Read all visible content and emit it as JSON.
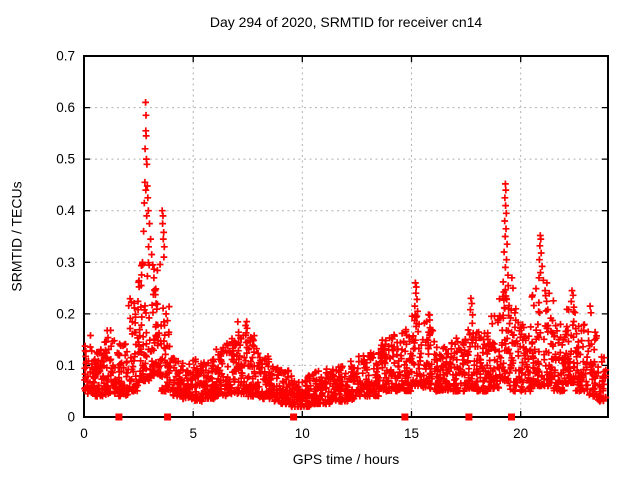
{
  "chart_data": {
    "type": "scatter",
    "title": "Day 294 of 2020, SRMTID for receiver cn14",
    "xlabel": "GPS time / hours",
    "ylabel": "SRMTID / TECUs",
    "xlim": [
      0,
      24
    ],
    "ylim": [
      0,
      0.7
    ],
    "xticks": [
      0,
      5,
      10,
      15,
      20
    ],
    "xtick_labels": [
      "0",
      "5",
      "10",
      "15",
      "20"
    ],
    "yticks": [
      0,
      0.1,
      0.2,
      0.3,
      0.4,
      0.5,
      0.6,
      0.7
    ],
    "ytick_labels": [
      "0",
      "0.1",
      "0.2",
      "0.3",
      "0.4",
      "0.5",
      "0.6",
      "0.7"
    ],
    "grid": {
      "show": true,
      "color": "#b0b0b0",
      "style": "dashed"
    },
    "legend": "none",
    "seed": 294,
    "series": [
      {
        "name": "SRMTID",
        "marker": "plus",
        "color": "#ff0000",
        "marker_size": 7,
        "density_bins": [
          [
            0.0,
            0.5,
            50,
            0.045,
            0.155,
            1.6
          ],
          [
            0.5,
            1.0,
            50,
            0.04,
            0.135,
            1.6
          ],
          [
            1.0,
            1.5,
            50,
            0.045,
            0.17,
            1.8
          ],
          [
            1.5,
            2.0,
            50,
            0.04,
            0.145,
            1.7
          ],
          [
            2.0,
            2.5,
            50,
            0.05,
            0.23,
            2.0
          ],
          [
            2.5,
            3.0,
            55,
            0.07,
            0.3,
            2.0
          ],
          [
            3.0,
            3.5,
            55,
            0.08,
            0.3,
            2.0
          ],
          [
            3.5,
            4.0,
            50,
            0.05,
            0.22,
            1.9
          ],
          [
            4.0,
            4.5,
            50,
            0.04,
            0.115,
            1.6
          ],
          [
            4.5,
            5.0,
            50,
            0.035,
            0.11,
            1.6
          ],
          [
            5.0,
            5.5,
            50,
            0.03,
            0.115,
            1.6
          ],
          [
            5.5,
            6.0,
            50,
            0.035,
            0.12,
            1.6
          ],
          [
            6.0,
            6.5,
            50,
            0.04,
            0.14,
            1.7
          ],
          [
            6.5,
            7.0,
            50,
            0.045,
            0.155,
            1.7
          ],
          [
            7.0,
            7.5,
            50,
            0.045,
            0.185,
            1.9
          ],
          [
            7.5,
            8.0,
            50,
            0.04,
            0.16,
            1.8
          ],
          [
            8.0,
            8.5,
            45,
            0.035,
            0.12,
            1.6
          ],
          [
            8.5,
            9.0,
            45,
            0.03,
            0.1,
            1.6
          ],
          [
            9.0,
            9.5,
            45,
            0.025,
            0.095,
            1.6
          ],
          [
            9.5,
            10.0,
            45,
            0.02,
            0.085,
            1.5
          ],
          [
            10.0,
            10.5,
            45,
            0.02,
            0.09,
            1.5
          ],
          [
            10.5,
            11.0,
            45,
            0.025,
            0.09,
            1.5
          ],
          [
            11.0,
            11.5,
            45,
            0.025,
            0.095,
            1.5
          ],
          [
            11.5,
            12.0,
            45,
            0.03,
            0.1,
            1.5
          ],
          [
            12.0,
            12.5,
            45,
            0.03,
            0.11,
            1.5
          ],
          [
            12.5,
            13.0,
            45,
            0.04,
            0.12,
            1.6
          ],
          [
            13.0,
            13.5,
            45,
            0.04,
            0.13,
            1.6
          ],
          [
            13.5,
            14.0,
            50,
            0.05,
            0.15,
            1.7
          ],
          [
            14.0,
            14.5,
            50,
            0.05,
            0.16,
            1.7
          ],
          [
            14.5,
            15.0,
            50,
            0.05,
            0.17,
            1.8
          ],
          [
            15.0,
            15.5,
            50,
            0.06,
            0.2,
            1.8
          ],
          [
            15.5,
            16.0,
            50,
            0.055,
            0.2,
            1.9
          ],
          [
            16.0,
            16.5,
            50,
            0.05,
            0.15,
            1.7
          ],
          [
            16.5,
            17.0,
            50,
            0.05,
            0.145,
            1.7
          ],
          [
            17.0,
            17.5,
            50,
            0.05,
            0.16,
            1.7
          ],
          [
            17.5,
            18.0,
            50,
            0.055,
            0.19,
            1.9
          ],
          [
            18.0,
            18.5,
            50,
            0.05,
            0.17,
            1.8
          ],
          [
            18.5,
            19.0,
            50,
            0.055,
            0.2,
            1.8
          ],
          [
            19.0,
            19.5,
            55,
            0.07,
            0.26,
            1.8
          ],
          [
            19.5,
            20.0,
            50,
            0.05,
            0.22,
            2.0
          ],
          [
            20.0,
            20.5,
            50,
            0.05,
            0.18,
            1.8
          ],
          [
            20.5,
            21.0,
            55,
            0.06,
            0.26,
            1.9
          ],
          [
            21.0,
            21.5,
            55,
            0.06,
            0.24,
            1.9
          ],
          [
            21.5,
            22.0,
            50,
            0.05,
            0.18,
            1.8
          ],
          [
            22.0,
            22.5,
            55,
            0.065,
            0.22,
            1.8
          ],
          [
            22.5,
            23.0,
            50,
            0.05,
            0.18,
            1.8
          ],
          [
            23.0,
            23.5,
            45,
            0.04,
            0.17,
            1.8
          ],
          [
            23.5,
            23.9,
            35,
            0.03,
            0.12,
            1.6
          ]
        ],
        "peak_points": [
          [
            2.82,
            0.61
          ],
          [
            2.84,
            0.585
          ],
          [
            2.83,
            0.555
          ],
          [
            2.85,
            0.545
          ],
          [
            2.8,
            0.52
          ],
          [
            2.86,
            0.5
          ],
          [
            2.88,
            0.49
          ],
          [
            2.79,
            0.455
          ],
          [
            2.9,
            0.448
          ],
          [
            2.83,
            0.44
          ],
          [
            2.92,
            0.425
          ],
          [
            2.76,
            0.415
          ],
          [
            2.95,
            0.4
          ],
          [
            2.87,
            0.39
          ],
          [
            3.0,
            0.375
          ],
          [
            2.73,
            0.36
          ],
          [
            3.05,
            0.345
          ],
          [
            2.96,
            0.33
          ],
          [
            3.1,
            0.315
          ],
          [
            2.68,
            0.3
          ],
          [
            3.15,
            0.295
          ],
          [
            3.2,
            0.27
          ],
          [
            2.62,
            0.255
          ],
          [
            3.25,
            0.245
          ],
          [
            3.3,
            0.22
          ],
          [
            3.58,
            0.4
          ],
          [
            3.62,
            0.39
          ],
          [
            3.6,
            0.375
          ],
          [
            3.65,
            0.358
          ],
          [
            3.63,
            0.345
          ],
          [
            3.68,
            0.33
          ],
          [
            3.66,
            0.31
          ],
          [
            7.45,
            0.185
          ],
          [
            7.47,
            0.172
          ],
          [
            7.43,
            0.163
          ],
          [
            15.18,
            0.26
          ],
          [
            15.22,
            0.252
          ],
          [
            15.2,
            0.24
          ],
          [
            15.25,
            0.228
          ],
          [
            15.15,
            0.215
          ],
          [
            15.28,
            0.205
          ],
          [
            17.72,
            0.23
          ],
          [
            17.76,
            0.22
          ],
          [
            17.7,
            0.208
          ],
          [
            17.8,
            0.198
          ],
          [
            19.3,
            0.452
          ],
          [
            19.32,
            0.44
          ],
          [
            19.28,
            0.425
          ],
          [
            19.31,
            0.41
          ],
          [
            19.34,
            0.395
          ],
          [
            19.27,
            0.38
          ],
          [
            19.33,
            0.365
          ],
          [
            19.29,
            0.35
          ],
          [
            19.38,
            0.335
          ],
          [
            19.24,
            0.32
          ],
          [
            19.35,
            0.305
          ],
          [
            19.3,
            0.29
          ],
          [
            19.42,
            0.275
          ],
          [
            19.2,
            0.262
          ],
          [
            19.6,
            0.27
          ],
          [
            19.65,
            0.25
          ],
          [
            20.9,
            0.352
          ],
          [
            20.92,
            0.345
          ],
          [
            20.88,
            0.332
          ],
          [
            20.94,
            0.318
          ],
          [
            20.86,
            0.305
          ],
          [
            20.98,
            0.292
          ],
          [
            20.91,
            0.28
          ],
          [
            21.04,
            0.265
          ],
          [
            20.84,
            0.27
          ],
          [
            21.2,
            0.26
          ],
          [
            21.12,
            0.245
          ],
          [
            22.35,
            0.245
          ],
          [
            22.4,
            0.236
          ],
          [
            22.32,
            0.224
          ],
          [
            22.44,
            0.213
          ],
          [
            23.18,
            0.215
          ],
          [
            23.22,
            0.202
          ],
          [
            1.22,
            0.168
          ],
          [
            0.3,
            0.158
          ],
          [
            6.78,
            0.152
          ],
          [
            0.95,
            0.145
          ]
        ]
      },
      {
        "name": "event markers",
        "marker": "filled-square",
        "color": "#ff0000",
        "marker_size": 7,
        "points": [
          [
            1.6,
            0
          ],
          [
            3.83,
            0
          ],
          [
            9.6,
            0
          ],
          [
            14.7,
            0
          ],
          [
            17.63,
            0
          ],
          [
            19.58,
            0
          ]
        ]
      }
    ]
  }
}
